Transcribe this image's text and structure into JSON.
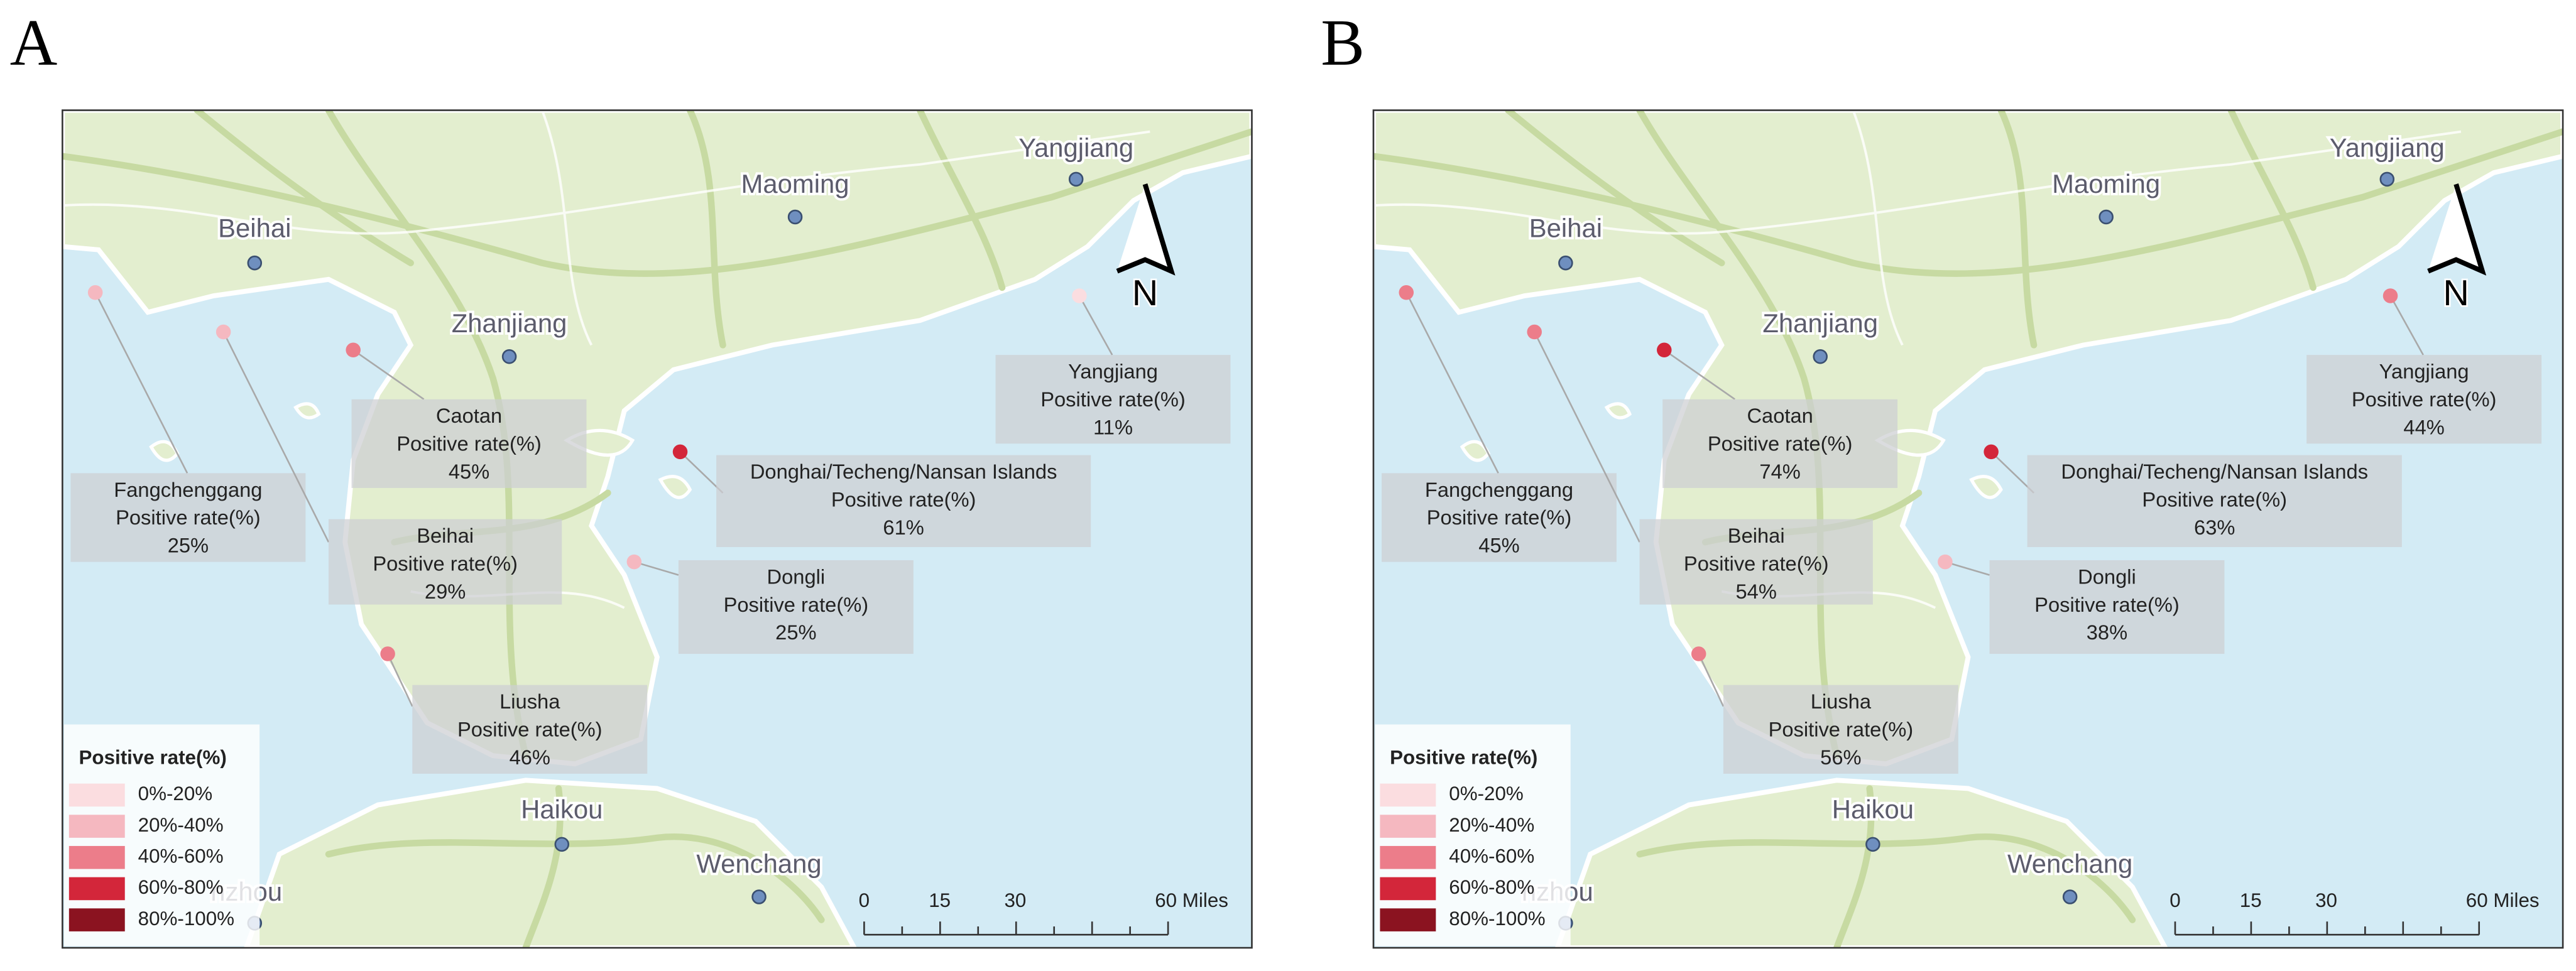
{
  "panels": [
    {
      "label": "A",
      "cities": [
        "Beihai",
        "Maoming",
        "Yangjiang",
        "Zhanjiang",
        "Haikou",
        "Wenchang",
        "nzhou"
      ],
      "sites": [
        {
          "name": "Fangchenggang",
          "caption": "Positive rate(%)",
          "rate": "25%",
          "color": "#f5b8c0"
        },
        {
          "name": "Beihai",
          "caption": "Positive rate(%)",
          "rate": "29%",
          "color": "#f5b8c0"
        },
        {
          "name": "Caotan",
          "caption": "Positive rate(%)",
          "rate": "45%",
          "color": "#ec7d8a"
        },
        {
          "name": "Donghai/Techeng/Nansan Islands",
          "caption": "Positive rate(%)",
          "rate": "61%",
          "color": "#d3263a"
        },
        {
          "name": "Dongli",
          "caption": "Positive rate(%)",
          "rate": "25%",
          "color": "#f5b8c0"
        },
        {
          "name": "Liusha",
          "caption": "Positive rate(%)",
          "rate": "46%",
          "color": "#ec7d8a"
        },
        {
          "name": "Yangjiang",
          "caption": "Positive rate(%)",
          "rate": "11%",
          "color": "#fbdde0"
        }
      ],
      "legend": {
        "title": "Positive rate(%)",
        "items": [
          {
            "label": "0%-20%",
            "color": "#fbdde0"
          },
          {
            "label": "20%-40%",
            "color": "#f5b8c0"
          },
          {
            "label": "40%-60%",
            "color": "#ec7d8a"
          },
          {
            "label": "60%-80%",
            "color": "#d3263a"
          },
          {
            "label": "80%-100%",
            "color": "#8b1320"
          }
        ]
      },
      "scale": {
        "ticks": [
          "0",
          "15",
          "30",
          "60 Miles"
        ]
      },
      "north": "N"
    },
    {
      "label": "B",
      "cities": [
        "Beihai",
        "Maoming",
        "Yangjiang",
        "Zhanjiang",
        "Haikou",
        "Wenchang",
        "nzhou"
      ],
      "sites": [
        {
          "name": "Fangchenggang",
          "caption": "Positive rate(%)",
          "rate": "45%",
          "color": "#ec7d8a"
        },
        {
          "name": "Beihai",
          "caption": "Positive rate(%)",
          "rate": "54%",
          "color": "#ec7d8a"
        },
        {
          "name": "Caotan",
          "caption": "Positive rate(%)",
          "rate": "74%",
          "color": "#d3263a"
        },
        {
          "name": "Donghai/Techeng/Nansan Islands",
          "caption": "Positive rate(%)",
          "rate": "63%",
          "color": "#d3263a"
        },
        {
          "name": "Dongli",
          "caption": "Positive rate(%)",
          "rate": "38%",
          "color": "#f5b8c0"
        },
        {
          "name": "Liusha",
          "caption": "Positive rate(%)",
          "rate": "56%",
          "color": "#ec7d8a"
        },
        {
          "name": "Yangjiang",
          "caption": "Positive rate(%)",
          "rate": "44%",
          "color": "#ec7d8a"
        }
      ],
      "legend": {
        "title": "Positive rate(%)",
        "items": [
          {
            "label": "0%-20%",
            "color": "#fbdde0"
          },
          {
            "label": "20%-40%",
            "color": "#f5b8c0"
          },
          {
            "label": "40%-60%",
            "color": "#ec7d8a"
          },
          {
            "label": "60%-80%",
            "color": "#d3263a"
          },
          {
            "label": "80%-100%",
            "color": "#8b1320"
          }
        ]
      },
      "scale": {
        "ticks": [
          "0",
          "15",
          "30",
          "60 Miles"
        ]
      },
      "north": "N"
    }
  ]
}
